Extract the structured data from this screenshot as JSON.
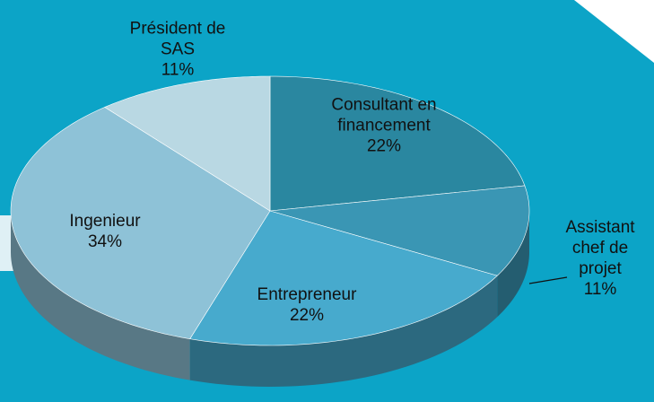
{
  "chart_data": {
    "type": "pie3d",
    "categories": [
      "Consultant en financement",
      "Assistant chef de projet",
      "Entrepreneur",
      "Ingenieur",
      "Président de SAS"
    ],
    "values": [
      22,
      11,
      22,
      34,
      11
    ],
    "value_labels": [
      "22%",
      "11%",
      "22%",
      "34%",
      "11%"
    ],
    "colors": [
      "#2a87a0",
      "#3a96b4",
      "#47aacd",
      "#8ec2d7",
      "#b9d8e3"
    ]
  }
}
